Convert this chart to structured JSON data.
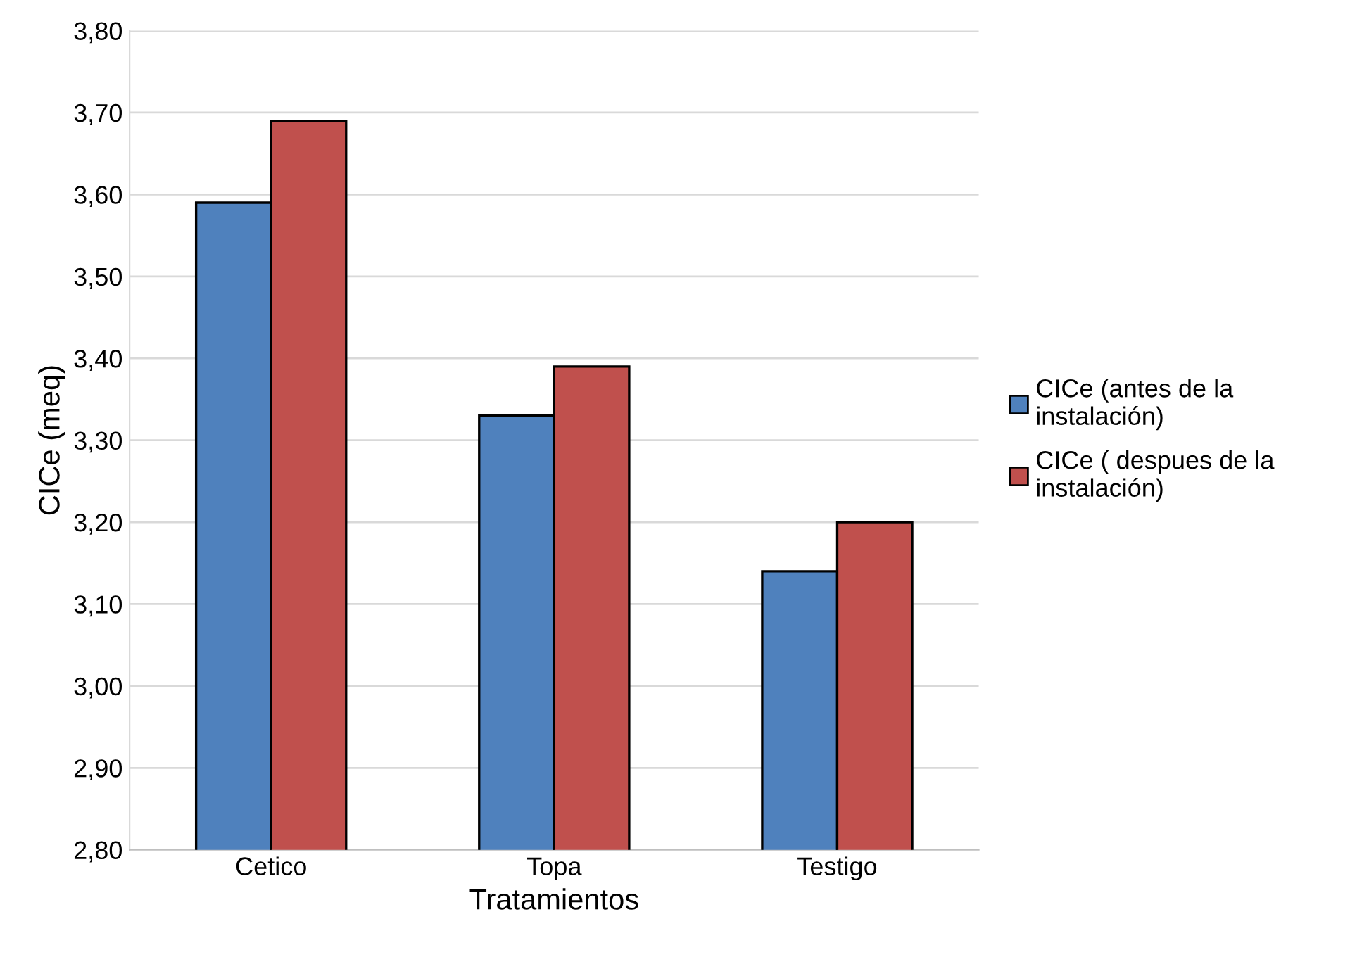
{
  "chart_data": {
    "type": "bar",
    "xlabel": "Tratamientos",
    "ylabel": "CICe (meq)",
    "categories": [
      "Cetico",
      "Topa",
      "Testigo"
    ],
    "series": [
      {
        "name": "CICe (antes de la\ninstalación)",
        "color": "#4f81bd",
        "values": [
          3.59,
          3.33,
          3.14
        ]
      },
      {
        "name": "CICe ( despues de la\ninstalación)",
        "color": "#c0504d",
        "values": [
          3.69,
          3.39,
          3.2
        ]
      }
    ],
    "ylim": [
      2.8,
      3.8
    ],
    "yticks": [
      {
        "value": 2.8,
        "label": "2,80"
      },
      {
        "value": 2.9,
        "label": "2,90"
      },
      {
        "value": 3.0,
        "label": "3,00"
      },
      {
        "value": 3.1,
        "label": "3,10"
      },
      {
        "value": 3.2,
        "label": "3,20"
      },
      {
        "value": 3.3,
        "label": "3,30"
      },
      {
        "value": 3.4,
        "label": "3,40"
      },
      {
        "value": 3.5,
        "label": "3,50"
      },
      {
        "value": 3.6,
        "label": "3,60"
      },
      {
        "value": 3.7,
        "label": "3,70"
      },
      {
        "value": 3.8,
        "label": "3,80"
      }
    ],
    "grid": "y",
    "legend": "right"
  }
}
